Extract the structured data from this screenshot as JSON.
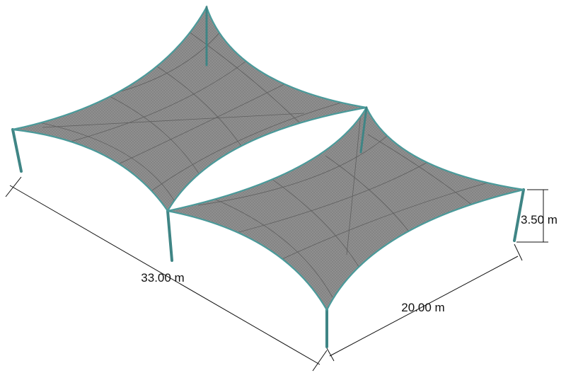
{
  "dimensions": {
    "length": "33.00 m",
    "width": "20.00 m",
    "height": "3.50 m"
  }
}
